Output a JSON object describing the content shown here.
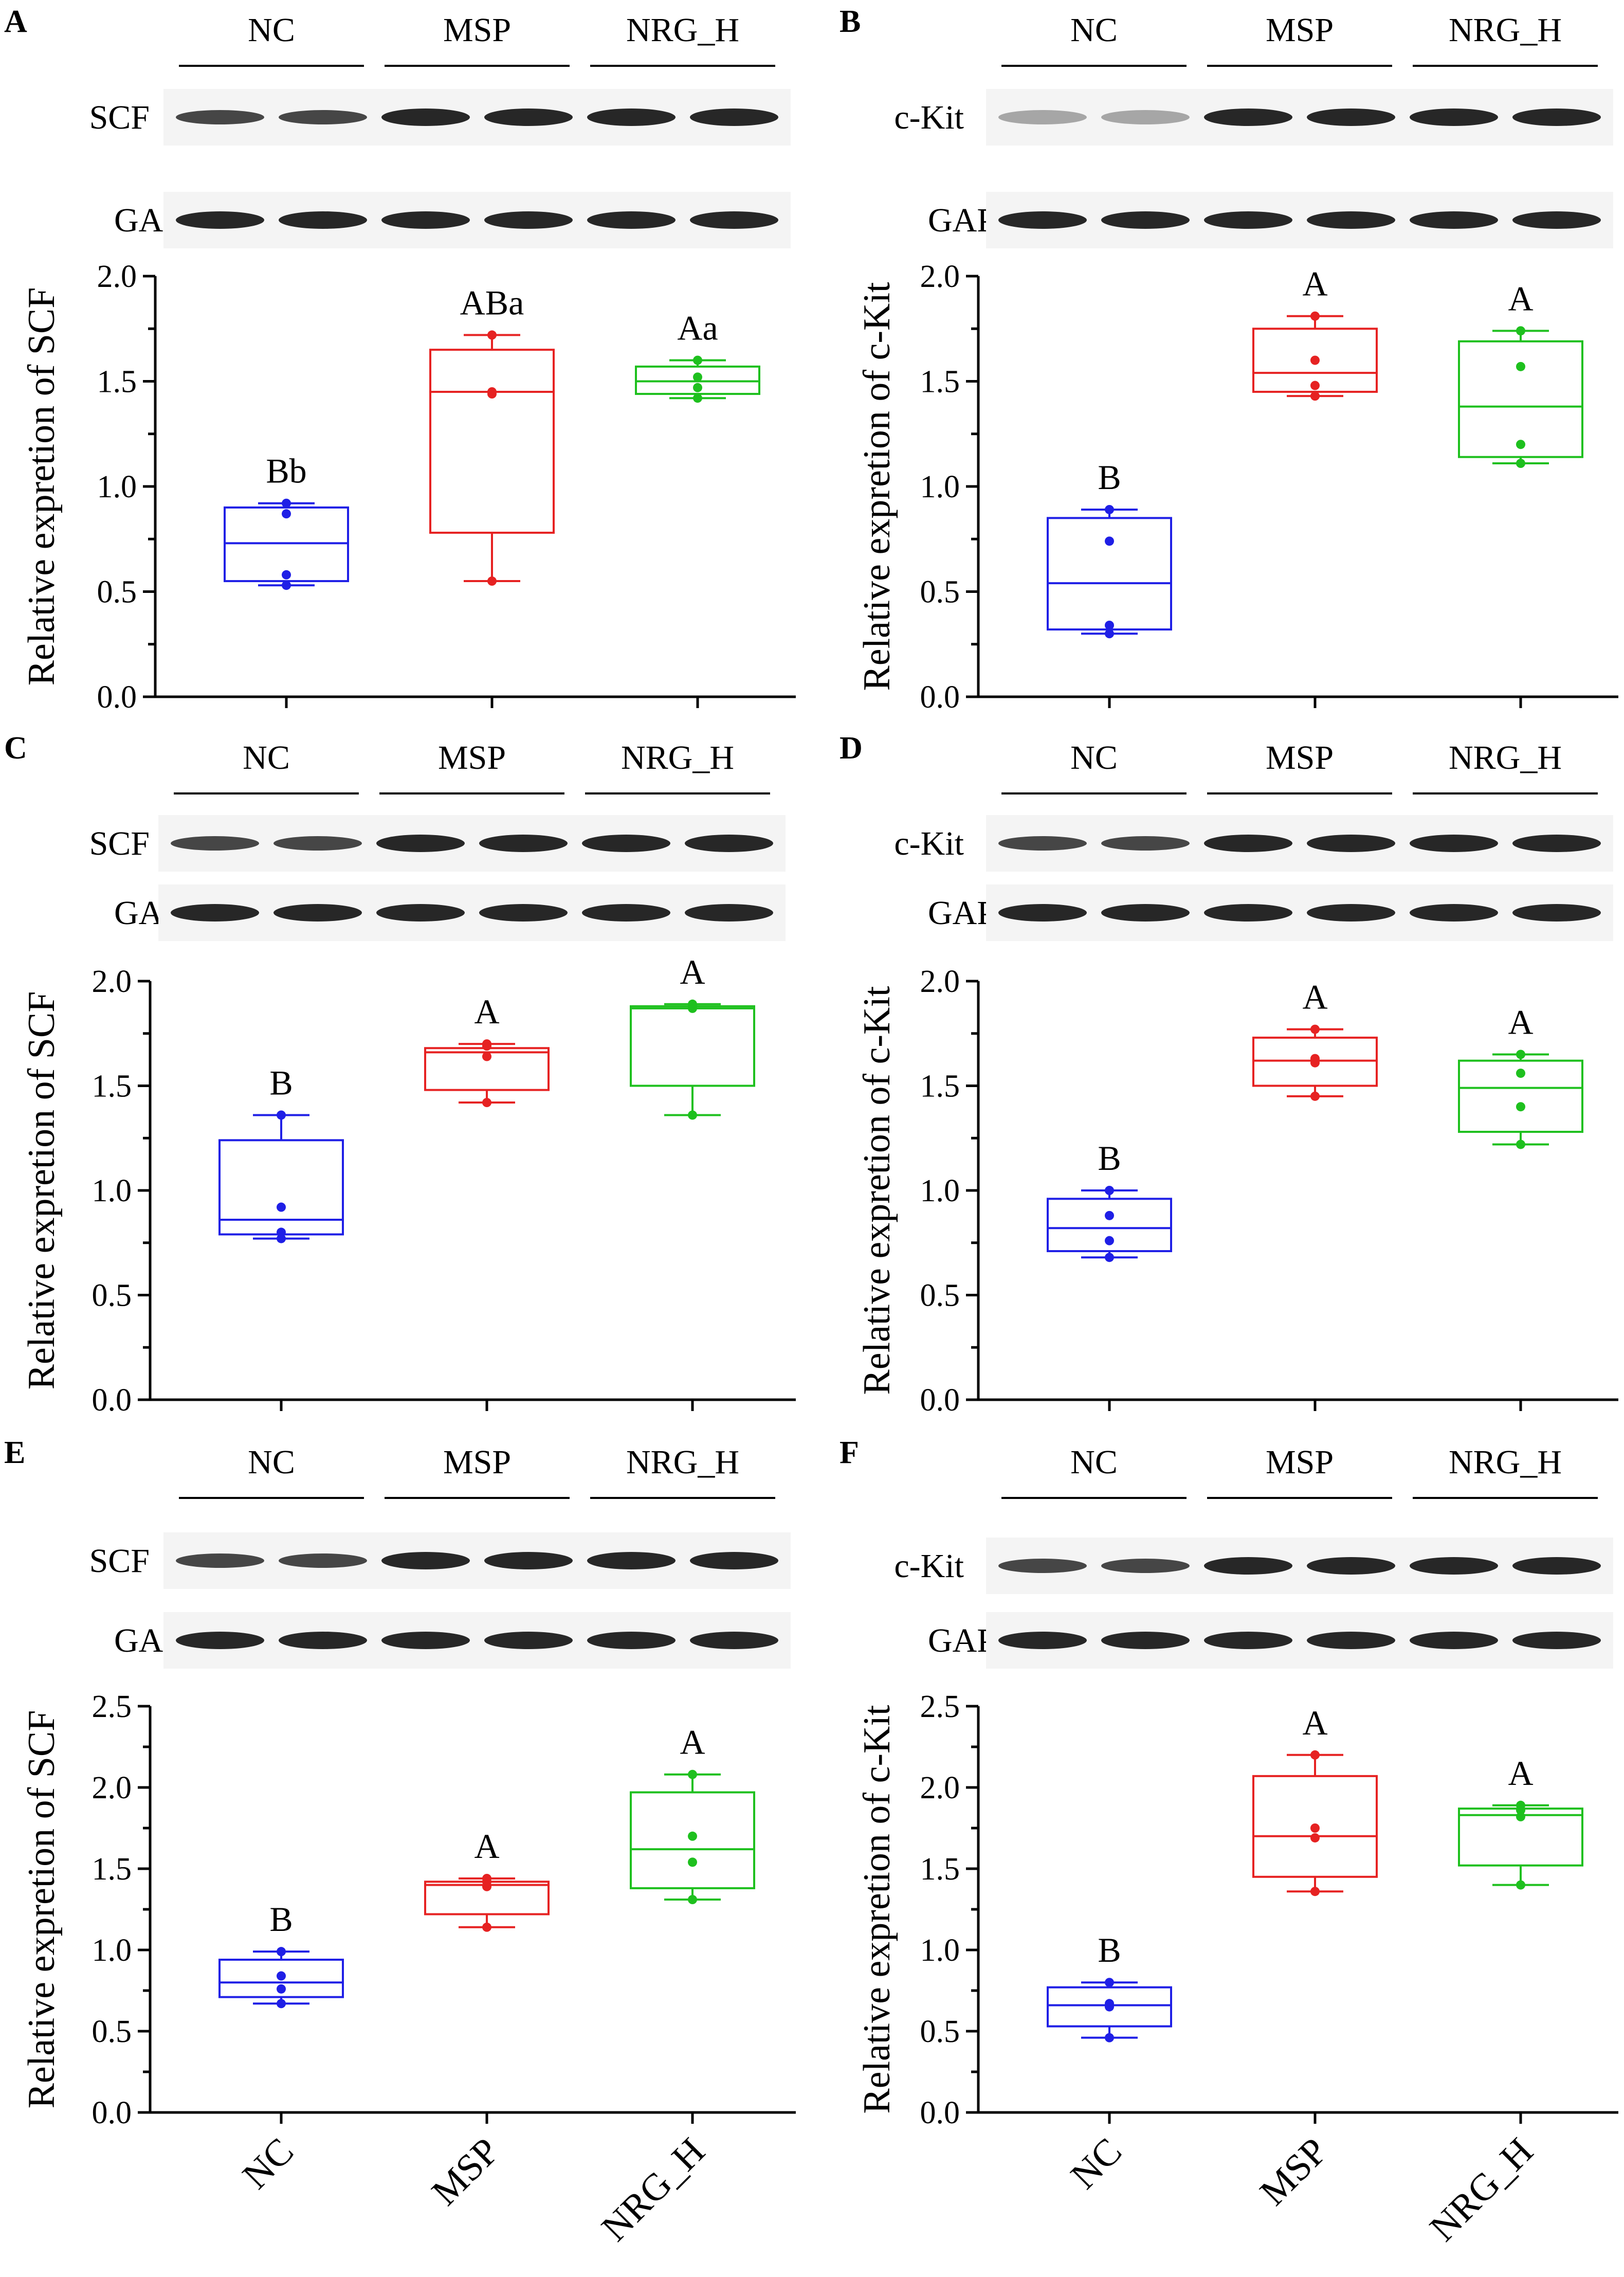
{
  "colors": {
    "NC": "#1f1fe6",
    "MSP": "#e62222",
    "NRG_H": "#1ec01e"
  },
  "chart_data": [
    {
      "panel": "A",
      "type": "box",
      "ylabel": "Relative expretion of SCF",
      "ylim": [
        0,
        2.0
      ],
      "yticks": [
        "0.0",
        "0.5",
        "1.0",
        "1.5",
        "2.0"
      ],
      "blot_groups": [
        "NC",
        "MSP",
        "NRG_H"
      ],
      "blot_rows": [
        "SCF",
        "GAPDH"
      ],
      "categories": [
        "NC",
        "MSP",
        "NRG_H"
      ],
      "series": [
        {
          "name": "NC",
          "whisker_min": 0.53,
          "q1": 0.55,
          "median": 0.73,
          "q3": 0.9,
          "whisker_max": 0.92,
          "points": [
            0.53,
            0.58,
            0.87,
            0.92
          ],
          "label": "Bb"
        },
        {
          "name": "MSP",
          "whisker_min": 0.55,
          "q1": 0.78,
          "median": 1.45,
          "q3": 1.65,
          "whisker_max": 1.72,
          "points": [
            0.55,
            1.44,
            1.45,
            1.72
          ],
          "label": "ABa"
        },
        {
          "name": "NRG_H",
          "whisker_min": 1.42,
          "q1": 1.44,
          "median": 1.5,
          "q3": 1.57,
          "whisker_max": 1.6,
          "points": [
            1.42,
            1.47,
            1.52,
            1.6
          ],
          "label": "Aa"
        }
      ]
    },
    {
      "panel": "B",
      "type": "box",
      "ylabel": "Relative expretion of c-Kit",
      "ylim": [
        0,
        2.0
      ],
      "yticks": [
        "0.0",
        "0.5",
        "1.0",
        "1.5",
        "2.0"
      ],
      "blot_groups": [
        "NC",
        "MSP",
        "NRG_H"
      ],
      "blot_rows": [
        "c-Kit",
        "GAPDH"
      ],
      "categories": [
        "NC",
        "MSP",
        "NRG_H"
      ],
      "series": [
        {
          "name": "NC",
          "whisker_min": 0.3,
          "q1": 0.32,
          "median": 0.54,
          "q3": 0.85,
          "whisker_max": 0.89,
          "points": [
            0.3,
            0.34,
            0.74,
            0.89
          ],
          "label": "B"
        },
        {
          "name": "MSP",
          "whisker_min": 1.43,
          "q1": 1.45,
          "median": 1.54,
          "q3": 1.75,
          "whisker_max": 1.81,
          "points": [
            1.43,
            1.48,
            1.6,
            1.81
          ],
          "label": "A"
        },
        {
          "name": "NRG_H",
          "whisker_min": 1.11,
          "q1": 1.14,
          "median": 1.38,
          "q3": 1.69,
          "whisker_max": 1.74,
          "points": [
            1.11,
            1.2,
            1.57,
            1.74
          ],
          "label": "A"
        }
      ]
    },
    {
      "panel": "C",
      "type": "box",
      "ylabel": "Relative expretion of SCF",
      "ylim": [
        0,
        2.0
      ],
      "yticks": [
        "0.0",
        "0.5",
        "1.0",
        "1.5",
        "2.0"
      ],
      "blot_groups": [
        "NC",
        "MSP",
        "NRG_H"
      ],
      "blot_rows": [
        "SCF",
        "GAPDH"
      ],
      "categories": [
        "NC",
        "MSP",
        "NRG_H"
      ],
      "series": [
        {
          "name": "NC",
          "whisker_min": 0.77,
          "q1": 0.79,
          "median": 0.86,
          "q3": 1.24,
          "whisker_max": 1.36,
          "points": [
            0.77,
            0.8,
            0.92,
            1.36
          ],
          "label": "B"
        },
        {
          "name": "MSP",
          "whisker_min": 1.42,
          "q1": 1.48,
          "median": 1.66,
          "q3": 1.68,
          "whisker_max": 1.7,
          "points": [
            1.42,
            1.64,
            1.69,
            1.7
          ],
          "label": "A"
        },
        {
          "name": "NRG_H",
          "whisker_min": 1.36,
          "q1": 1.5,
          "median": 1.87,
          "q3": 1.88,
          "whisker_max": 1.89,
          "points": [
            1.36,
            1.87,
            1.88,
            1.89
          ],
          "label": "A"
        }
      ]
    },
    {
      "panel": "D",
      "type": "box",
      "ylabel": "Relative expretion of c-Kit",
      "ylim": [
        0,
        2.0
      ],
      "yticks": [
        "0.0",
        "0.5",
        "1.0",
        "1.5",
        "2.0"
      ],
      "blot_groups": [
        "NC",
        "MSP",
        "NRG_H"
      ],
      "blot_rows": [
        "c-Kit",
        "GAPDH"
      ],
      "categories": [
        "NC",
        "MSP",
        "NRG_H"
      ],
      "series": [
        {
          "name": "NC",
          "whisker_min": 0.68,
          "q1": 0.71,
          "median": 0.82,
          "q3": 0.96,
          "whisker_max": 1.0,
          "points": [
            0.68,
            0.76,
            0.88,
            1.0
          ],
          "label": "B"
        },
        {
          "name": "MSP",
          "whisker_min": 1.45,
          "q1": 1.5,
          "median": 1.62,
          "q3": 1.73,
          "whisker_max": 1.77,
          "points": [
            1.45,
            1.61,
            1.63,
            1.77
          ],
          "label": "A"
        },
        {
          "name": "NRG_H",
          "whisker_min": 1.22,
          "q1": 1.28,
          "median": 1.49,
          "q3": 1.62,
          "whisker_max": 1.65,
          "points": [
            1.22,
            1.4,
            1.56,
            1.65
          ],
          "label": "A"
        }
      ]
    },
    {
      "panel": "E",
      "type": "box",
      "ylabel": "Relative expretion of SCF",
      "ylim": [
        0,
        2.5
      ],
      "yticks": [
        "0.0",
        "0.5",
        "1.0",
        "1.5",
        "2.0",
        "2.5"
      ],
      "blot_groups": [
        "NC",
        "MSP",
        "NRG_H"
      ],
      "blot_rows": [
        "SCF",
        "GAPDH"
      ],
      "categories": [
        "NC",
        "MSP",
        "NRG_H"
      ],
      "series": [
        {
          "name": "NC",
          "whisker_min": 0.67,
          "q1": 0.71,
          "median": 0.8,
          "q3": 0.94,
          "whisker_max": 0.99,
          "points": [
            0.67,
            0.76,
            0.84,
            0.99
          ],
          "label": "B"
        },
        {
          "name": "MSP",
          "whisker_min": 1.14,
          "q1": 1.22,
          "median": 1.4,
          "q3": 1.42,
          "whisker_max": 1.44,
          "points": [
            1.14,
            1.39,
            1.42,
            1.44
          ],
          "label": "A"
        },
        {
          "name": "NRG_H",
          "whisker_min": 1.31,
          "q1": 1.38,
          "median": 1.62,
          "q3": 1.97,
          "whisker_max": 2.08,
          "points": [
            1.31,
            1.54,
            1.7,
            2.08
          ],
          "label": "A"
        }
      ]
    },
    {
      "panel": "F",
      "type": "box",
      "ylabel": "Relative expretion of c-Kit",
      "ylim": [
        0,
        2.5
      ],
      "yticks": [
        "0.0",
        "0.5",
        "1.0",
        "1.5",
        "2.0",
        "2.5"
      ],
      "blot_groups": [
        "NC",
        "MSP",
        "NRG_H"
      ],
      "blot_rows": [
        "c-Kit",
        "GAPDH"
      ],
      "categories": [
        "NC",
        "MSP",
        "NRG_H"
      ],
      "series": [
        {
          "name": "NC",
          "whisker_min": 0.46,
          "q1": 0.53,
          "median": 0.66,
          "q3": 0.77,
          "whisker_max": 0.8,
          "points": [
            0.46,
            0.65,
            0.67,
            0.8
          ],
          "label": "B"
        },
        {
          "name": "MSP",
          "whisker_min": 1.36,
          "q1": 1.45,
          "median": 1.7,
          "q3": 2.07,
          "whisker_max": 2.2,
          "points": [
            1.36,
            1.69,
            1.75,
            2.2
          ],
          "label": "A"
        },
        {
          "name": "NRG_H",
          "whisker_min": 1.4,
          "q1": 1.52,
          "median": 1.83,
          "q3": 1.87,
          "whisker_max": 1.89,
          "points": [
            1.4,
            1.82,
            1.86,
            1.89
          ],
          "label": "A"
        }
      ]
    }
  ]
}
